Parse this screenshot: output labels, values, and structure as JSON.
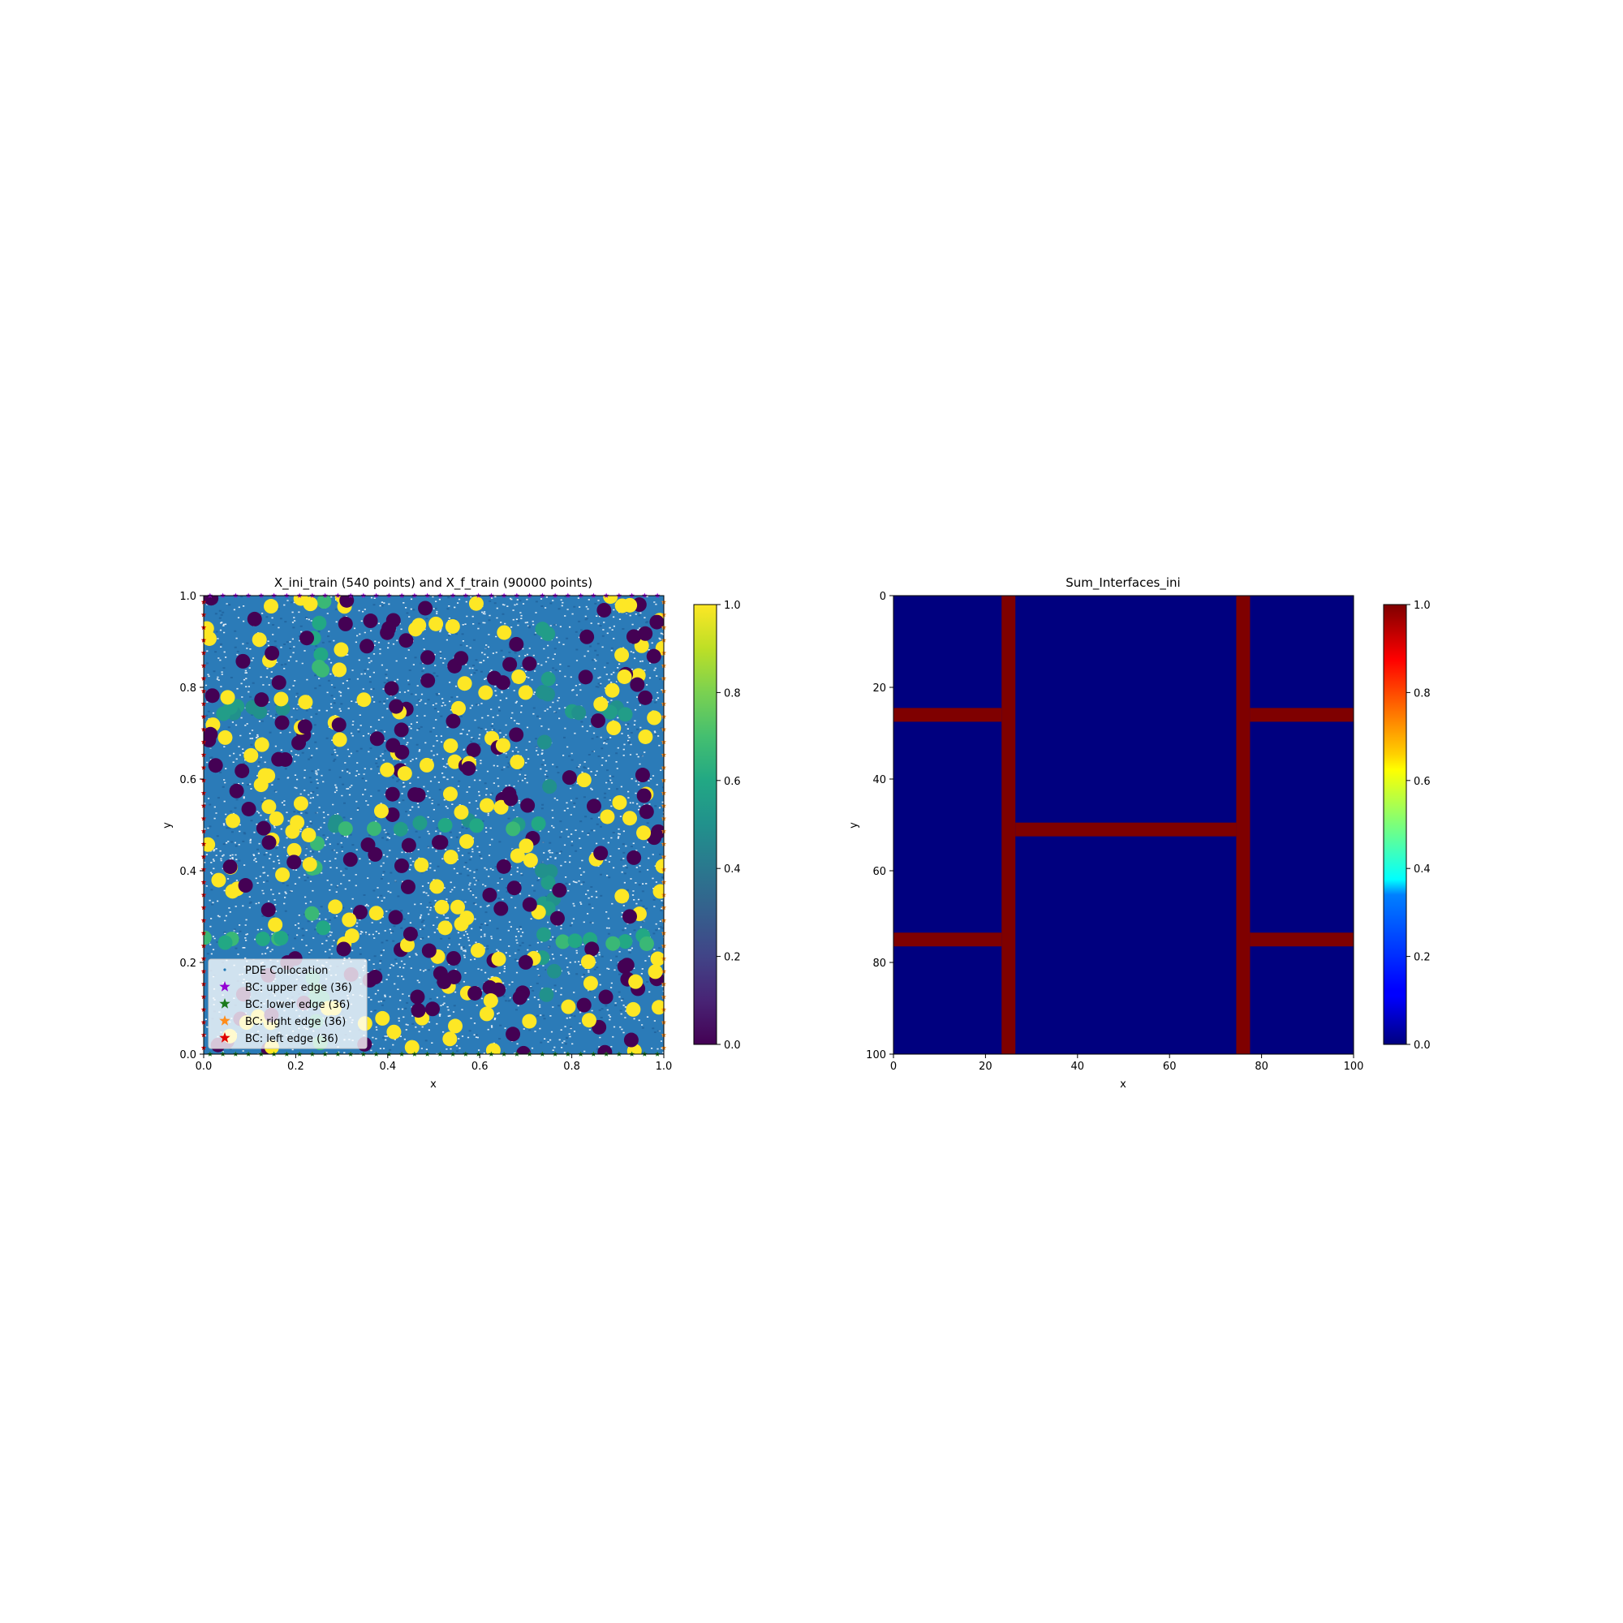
{
  "chart_data": [
    {
      "type": "scatter",
      "title": "X_ini_train (540 points) and X_f_train (90000 points)",
      "xlabel": "x",
      "ylabel": "y",
      "xlim": [
        0.0,
        1.0
      ],
      "ylim": [
        0.0,
        1.0
      ],
      "xticks": [
        "0.0",
        "0.2",
        "0.4",
        "0.6",
        "0.8",
        "1.0"
      ],
      "yticks": [
        "0.0",
        "0.2",
        "0.4",
        "0.6",
        "0.8",
        "1.0"
      ],
      "grid": false,
      "legend_position": "lower-left",
      "colormap": "viridis",
      "colorbar": {
        "range": [
          0.0,
          1.0
        ],
        "ticks": [
          "0.0",
          "0.2",
          "0.4",
          "0.6",
          "0.8",
          "1.0"
        ]
      },
      "series": [
        {
          "name": "PDE Collocation",
          "color": "#1f77b4",
          "marker": "dot",
          "count": 90000
        },
        {
          "name": "BC: upper edge (36)",
          "color": "#9400d3",
          "marker": "star"
        },
        {
          "name": "BC: lower edge (36)",
          "color": "#1a7a1a",
          "marker": "star"
        },
        {
          "name": "BC: right edge (36)",
          "color": "#ff8c1a",
          "marker": "star"
        },
        {
          "name": "BC: left edge (36)",
          "color": "#e00000",
          "marker": "star"
        }
      ],
      "initial_points": {
        "count": 540,
        "value_levels": [
          0.0,
          0.5,
          0.67,
          1.0
        ],
        "interface_lines": {
          "vertical_x": [
            0.25,
            0.75
          ],
          "horizontal_y": [
            0.25,
            0.5,
            0.75
          ]
        }
      }
    },
    {
      "type": "heatmap",
      "title": "Sum_Interfaces_ini",
      "xlabel": "x",
      "ylabel": "y",
      "xlim": [
        0,
        100
      ],
      "ylim": [
        100,
        0
      ],
      "xticks": [
        "0",
        "20",
        "40",
        "60",
        "80",
        "100"
      ],
      "yticks": [
        "0",
        "20",
        "40",
        "60",
        "80",
        "100"
      ],
      "colormap": "jet",
      "colorbar": {
        "range": [
          0.0,
          1.0
        ],
        "ticks": [
          "0.0",
          "0.2",
          "0.4",
          "0.6",
          "0.8",
          "1.0"
        ]
      },
      "background_value": 0.0,
      "interfaces_value": 1.0,
      "interfaces": [
        {
          "orientation": "vertical",
          "x0": 23.5,
          "x1": 26.5,
          "y0": 0,
          "y1": 100
        },
        {
          "orientation": "vertical",
          "x0": 74.5,
          "x1": 77.5,
          "y0": 0,
          "y1": 100
        },
        {
          "orientation": "horizontal",
          "x0": 0,
          "x1": 23.5,
          "y0": 24.5,
          "y1": 27.5
        },
        {
          "orientation": "horizontal",
          "x0": 0,
          "x1": 23.5,
          "y0": 73.5,
          "y1": 76.5
        },
        {
          "orientation": "horizontal",
          "x0": 77.5,
          "x1": 100,
          "y0": 24.5,
          "y1": 27.5
        },
        {
          "orientation": "horizontal",
          "x0": 77.5,
          "x1": 100,
          "y0": 73.5,
          "y1": 76.5
        },
        {
          "orientation": "horizontal",
          "x0": 26.5,
          "x1": 74.5,
          "y0": 49.5,
          "y1": 52.5
        }
      ]
    }
  ]
}
